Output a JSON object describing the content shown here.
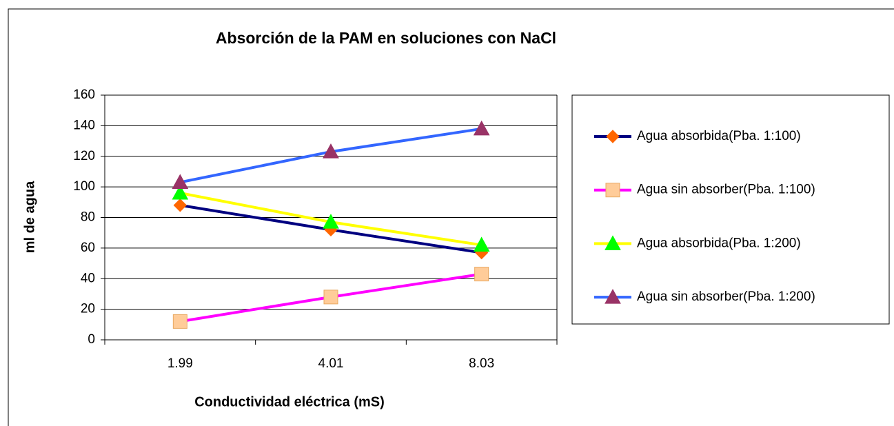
{
  "chart_data": {
    "type": "line",
    "title": "Absorción de la PAM en soluciones con NaCl",
    "x_label": "Conductividad eléctrica (mS)",
    "y_label": "ml de agua",
    "categories": [
      "1.99",
      "4.01",
      "8.03"
    ],
    "ylim": [
      0,
      160
    ],
    "yticks": [
      0,
      20,
      40,
      60,
      80,
      100,
      120,
      140,
      160
    ],
    "grid": true,
    "legend": "right",
    "series": [
      {
        "name": "Agua absorbida(Pba. 1:100)",
        "color": "#000080",
        "marker": "diamond",
        "marker_color": "#ff6600",
        "values": [
          88,
          72,
          57
        ]
      },
      {
        "name": "Agua sin absorber(Pba. 1:100)",
        "color": "#ff00ff",
        "marker": "square",
        "marker_color": "#ffcc99",
        "values": [
          12,
          28,
          43
        ]
      },
      {
        "name": "Agua absorbida(Pba. 1:200)",
        "color": "#ffff00",
        "marker": "triangle",
        "marker_color": "#00ff00",
        "values": [
          96,
          77,
          62
        ]
      },
      {
        "name": "Agua sin absorber(Pba. 1:200)",
        "color": "#3366ff",
        "marker": "triangle",
        "marker_color": "#993366",
        "values": [
          103,
          123,
          138
        ]
      }
    ]
  }
}
